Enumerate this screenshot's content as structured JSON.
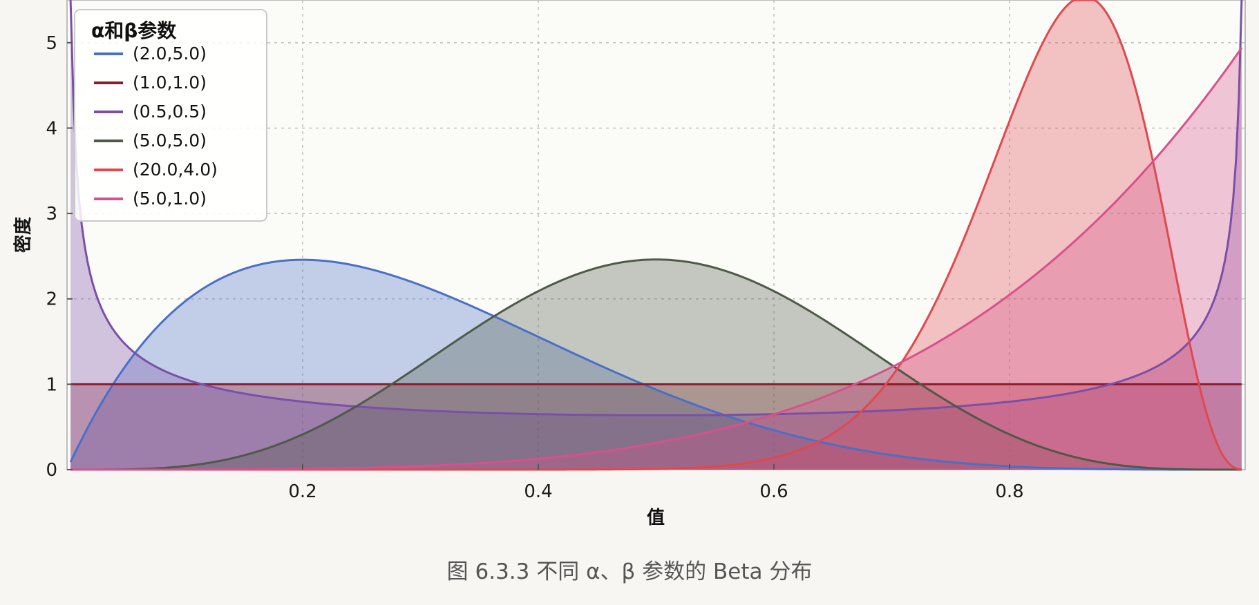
{
  "chart_data": {
    "type": "area",
    "title": "",
    "xlabel": "值",
    "ylabel": "密度",
    "xlim": [
      0.0,
      1.0
    ],
    "ylim": [
      0,
      5.5
    ],
    "xticks": [
      0.2,
      0.4,
      0.6,
      0.8
    ],
    "xtick_labels": [
      "0.2",
      "0.4",
      "0.6",
      "0.8"
    ],
    "yticks": [
      0,
      1,
      2,
      3,
      4,
      5
    ],
    "ytick_labels": [
      "0",
      "1",
      "2",
      "3",
      "4",
      "5"
    ],
    "grid": true,
    "legend": {
      "title": "α和β参数",
      "placement": "top-left"
    },
    "series": [
      {
        "name": "(2.0,5.0)",
        "alpha": 2.0,
        "beta": 5.0,
        "color": "#4a6fc8"
      },
      {
        "name": "(1.0,1.0)",
        "alpha": 1.0,
        "beta": 1.0,
        "color": "#8c1c2c"
      },
      {
        "name": "(0.5,0.5)",
        "alpha": 0.5,
        "beta": 0.5,
        "color": "#7a4fa8"
      },
      {
        "name": "(5.0,5.0)",
        "alpha": 5.0,
        "beta": 5.0,
        "color": "#4e5a48"
      },
      {
        "name": "(20.0,4.0)",
        "alpha": 20.0,
        "beta": 4.0,
        "color": "#e0484e"
      },
      {
        "name": "(5.0,1.0)",
        "alpha": 5.0,
        "beta": 1.0,
        "color": "#d8508c"
      }
    ],
    "caption": "图 6.3.3 不同 α、β 参数的 Beta 分布"
  }
}
